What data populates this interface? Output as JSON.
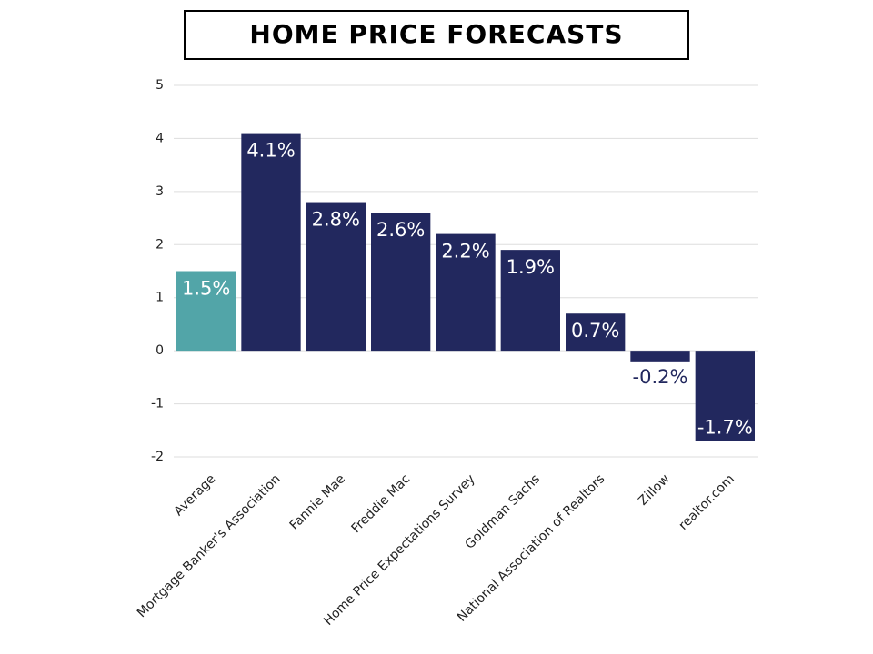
{
  "chart_data": {
    "type": "bar",
    "title": "HOME PRICE FORECASTS",
    "categories": [
      "Average",
      "Mortgage Banker's Association",
      "Fannie Mae",
      "Freddie Mac",
      "Home Price Expectations Survey",
      "Goldman Sachs",
      "National Association of Realtors",
      "Zillow",
      "realtor.com"
    ],
    "values": [
      1.5,
      4.1,
      2.8,
      2.6,
      2.2,
      1.9,
      0.7,
      -0.2,
      -1.7
    ],
    "value_labels": [
      "1.5%",
      "4.1%",
      "2.8%",
      "2.6%",
      "2.2%",
      "1.9%",
      "0.7%",
      "-0.2%",
      "-1.7%"
    ],
    "colors": [
      "#52a5a8",
      "#22285e",
      "#22285e",
      "#22285e",
      "#22285e",
      "#22285e",
      "#22285e",
      "#22285e",
      "#22285e"
    ],
    "ylim": [
      -2,
      5
    ],
    "yticks": [
      -2,
      -1,
      0,
      1,
      2,
      3,
      4,
      5
    ],
    "grid": true
  }
}
